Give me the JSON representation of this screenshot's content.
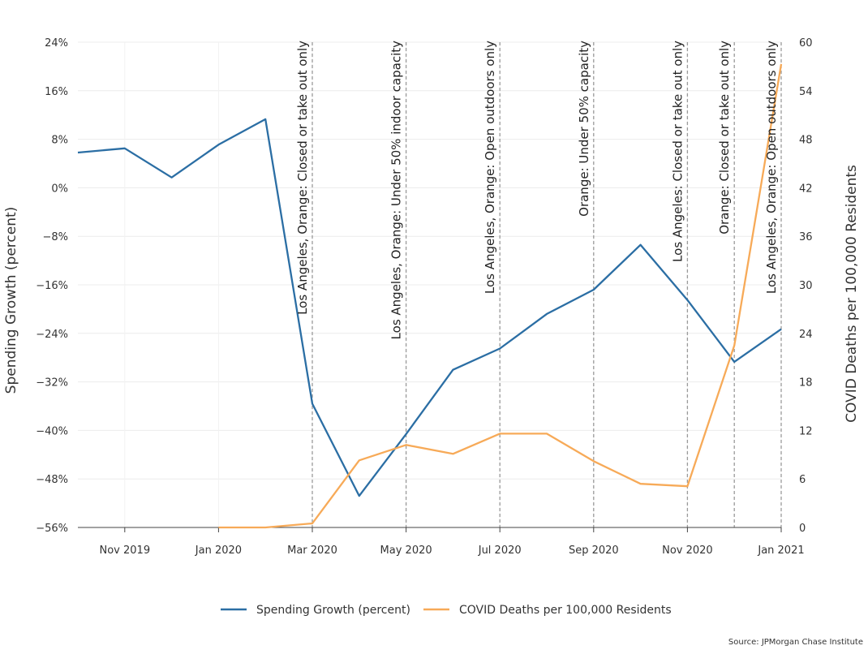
{
  "chart_data": {
    "type": "line",
    "x": [
      "2019-10",
      "2019-11",
      "2019-12",
      "2020-01",
      "2020-02",
      "2020-03",
      "2020-04",
      "2020-05",
      "2020-06",
      "2020-07",
      "2020-08",
      "2020-09",
      "2020-10",
      "2020-11",
      "2020-12",
      "2021-01"
    ],
    "x_ticks": [
      {
        "x": "2019-11",
        "label": "Nov 2019"
      },
      {
        "x": "2020-01",
        "label": "Jan 2020"
      },
      {
        "x": "2020-03",
        "label": "Mar 2020"
      },
      {
        "x": "2020-05",
        "label": "May 2020"
      },
      {
        "x": "2020-07",
        "label": "Jul 2020"
      },
      {
        "x": "2020-09",
        "label": "Sep 2020"
      },
      {
        "x": "2020-11",
        "label": "Nov 2020"
      },
      {
        "x": "2021-01",
        "label": "Jan 2021"
      }
    ],
    "xlim": [
      "2019-10",
      "2021-01"
    ],
    "series": [
      {
        "name": "Spending Growth (percent)",
        "axis": "left",
        "color": "#2b6ea4",
        "x": [
          "2019-10",
          "2019-11",
          "2019-12",
          "2020-01",
          "2020-02",
          "2020-03",
          "2020-04",
          "2020-05",
          "2020-06",
          "2020-07",
          "2020-08",
          "2020-09",
          "2020-10",
          "2020-11",
          "2020-12",
          "2021-01"
        ],
        "values": [
          5.8,
          6.5,
          1.7,
          7.1,
          11.3,
          -35.6,
          -50.8,
          -40.6,
          -30.0,
          -26.5,
          -20.8,
          -16.8,
          -9.4,
          -18.5,
          -28.7,
          -23.3
        ]
      },
      {
        "name": "COVID Deaths per 100,000 Residents",
        "axis": "right",
        "color": "#f7aa58",
        "x": [
          "2020-01",
          "2020-02",
          "2020-03",
          "2020-04",
          "2020-05",
          "2020-06",
          "2020-07",
          "2020-08",
          "2020-09",
          "2020-10",
          "2020-11",
          "2020-12",
          "2021-01"
        ],
        "values": [
          0.0,
          0.0,
          0.5,
          8.3,
          10.2,
          9.1,
          11.6,
          11.6,
          8.2,
          5.4,
          5.1,
          22.5,
          57.3
        ]
      }
    ],
    "y_left": {
      "label": "Spending Growth (percent)",
      "range": [
        -56,
        24
      ],
      "ticks": [
        24,
        16,
        8,
        0,
        -8,
        -16,
        -24,
        -32,
        -40,
        -48,
        -56
      ],
      "tick_labels": [
        "24%",
        "16%",
        "8%",
        "0%",
        "−8%",
        "−16%",
        "−24%",
        "−32%",
        "−40%",
        "−48%",
        "−56%"
      ]
    },
    "y_right": {
      "label": "COVID Deaths per 100,000 Residents",
      "range": [
        0,
        60
      ],
      "ticks": [
        60,
        54,
        48,
        42,
        36,
        30,
        24,
        18,
        12,
        6,
        0
      ],
      "tick_labels": [
        "60",
        "54",
        "48",
        "42",
        "36",
        "30",
        "24",
        "18",
        "12",
        "6",
        "0"
      ]
    },
    "events": [
      {
        "x": "2020-03",
        "label": "Los Angeles, Orange: Closed or take out only"
      },
      {
        "x": "2020-05",
        "label": "Los Angeles, Orange: Under 50% indoor capacity"
      },
      {
        "x": "2020-07",
        "label": "Los Angeles, Orange: Open outdoors only"
      },
      {
        "x": "2020-09",
        "label": "Orange: Under 50% capacity"
      },
      {
        "x": "2020-11",
        "label": "Los Angeles: Closed or take out only"
      },
      {
        "x": "2020-12",
        "label": "Orange: Closed or take out only"
      },
      {
        "x": "2021-01",
        "label": "Los Angeles, Orange: Open outdoors only"
      }
    ],
    "legend": {
      "placement": "bottom-center"
    },
    "grid": true,
    "source": "Source: JPMorgan Chase Institute"
  }
}
